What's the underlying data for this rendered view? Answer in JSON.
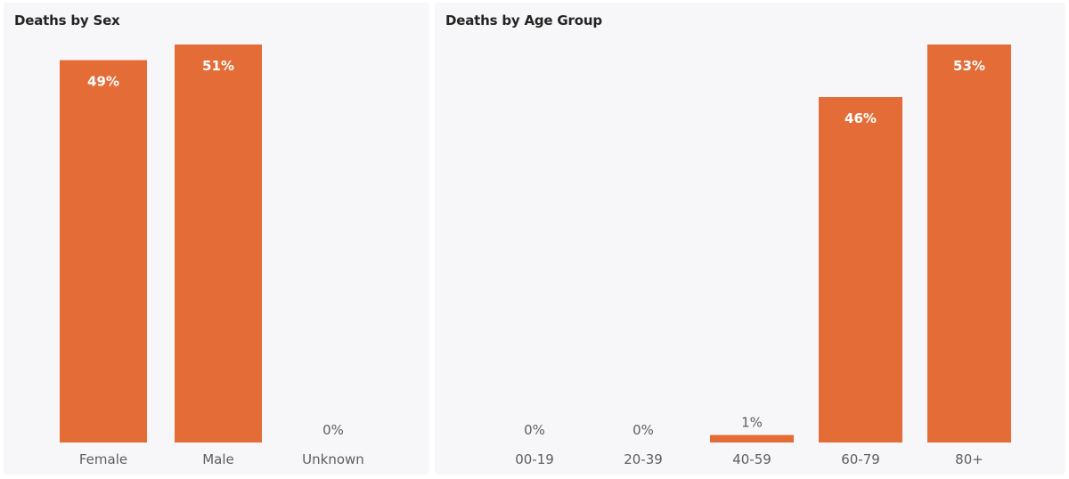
{
  "colors": {
    "bar": "#e46c36",
    "label_outside": "#605e5c",
    "label_inside": "#ffffff",
    "axis_text": "#605e5c",
    "panel_bg": "#f7f7f9"
  },
  "chart_data": [
    {
      "type": "bar",
      "title": "Deaths by Sex",
      "categories": [
        "Female",
        "Male",
        "Unknown"
      ],
      "values": [
        49,
        51,
        0
      ],
      "value_labels": [
        "49%",
        "51%",
        "0%"
      ],
      "ylim": [
        0,
        51
      ],
      "grid": false,
      "legend": "none"
    },
    {
      "type": "bar",
      "title": "Deaths by Age Group",
      "categories": [
        "00-19",
        "20-39",
        "40-59",
        "60-79",
        "80+"
      ],
      "values": [
        0,
        0,
        1,
        46,
        53
      ],
      "value_labels": [
        "0%",
        "0%",
        "1%",
        "46%",
        "53%"
      ],
      "ylim": [
        0,
        53
      ],
      "grid": false,
      "legend": "none"
    }
  ]
}
